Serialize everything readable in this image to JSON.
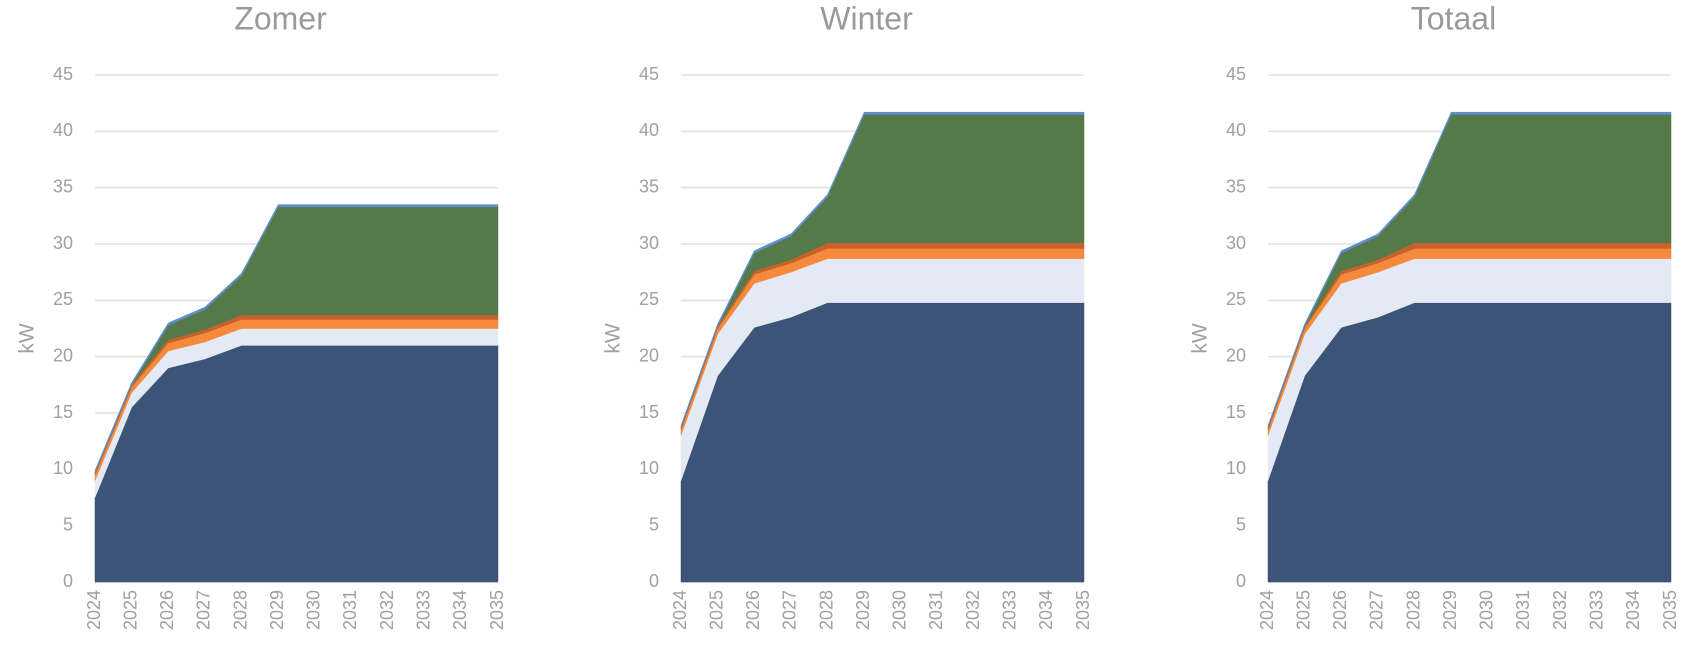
{
  "chart_data": [
    {
      "type": "area",
      "title": "Zomer",
      "ylabel": "kW",
      "categories": [
        "2024",
        "2025",
        "2026",
        "2027",
        "2028",
        "2029",
        "2030",
        "2031",
        "2032",
        "2033",
        "2034",
        "2035"
      ],
      "ylim": [
        0,
        45
      ],
      "yticks": [
        0,
        5,
        10,
        15,
        20,
        25,
        30,
        35,
        40,
        45
      ],
      "grid": true,
      "stacked": true,
      "series": [
        {
          "color": "#3b5478",
          "values": [
            7.5,
            15.5,
            19,
            19.8,
            21,
            21,
            21,
            21,
            21,
            21,
            21,
            21
          ]
        },
        {
          "color": "#e4eaf3",
          "values": [
            1.5,
            1.3,
            1.5,
            1.5,
            1.5,
            1.5,
            1.5,
            1.5,
            1.5,
            1.5,
            1.5,
            1.5
          ]
        },
        {
          "color": "#f58a3d",
          "values": [
            0.5,
            0.5,
            0.7,
            0.8,
            0.8,
            0.8,
            0.8,
            0.8,
            0.8,
            0.8,
            0.8,
            0.8
          ]
        },
        {
          "color": "#c9622a",
          "values": [
            0.2,
            0.2,
            0.3,
            0.3,
            0.4,
            0.4,
            0.4,
            0.4,
            0.4,
            0.4,
            0.4,
            0.4
          ]
        },
        {
          "color": "#56794a",
          "values": [
            0,
            0,
            1.3,
            1.8,
            3.5,
            9.6,
            9.6,
            9.6,
            9.6,
            9.6,
            9.6,
            9.6
          ]
        },
        {
          "color": "#5b8fd0",
          "values": [
            0.2,
            0.2,
            0.2,
            0.2,
            0.2,
            0.2,
            0.2,
            0.2,
            0.2,
            0.2,
            0.2,
            0.2
          ]
        }
      ]
    },
    {
      "type": "area",
      "title": "Winter",
      "ylabel": "kW",
      "categories": [
        "2024",
        "2025",
        "2026",
        "2027",
        "2028",
        "2029",
        "2030",
        "2031",
        "2032",
        "2033",
        "2034",
        "2035"
      ],
      "ylim": [
        0,
        45
      ],
      "yticks": [
        0,
        5,
        10,
        15,
        20,
        25,
        30,
        35,
        40,
        45
      ],
      "grid": true,
      "stacked": true,
      "series": [
        {
          "color": "#3b5478",
          "values": [
            9,
            18.3,
            22.6,
            23.5,
            24.8,
            24.8,
            24.8,
            24.8,
            24.8,
            24.8,
            24.8,
            24.8
          ]
        },
        {
          "color": "#e4eaf3",
          "values": [
            4,
            3.7,
            3.9,
            4,
            3.9,
            3.9,
            3.9,
            3.9,
            3.9,
            3.9,
            3.9,
            3.9
          ]
        },
        {
          "color": "#f58a3d",
          "values": [
            0.5,
            0.5,
            0.8,
            0.8,
            0.9,
            0.9,
            0.9,
            0.9,
            0.9,
            0.9,
            0.9,
            0.9
          ]
        },
        {
          "color": "#c9622a",
          "values": [
            0.2,
            0.2,
            0.3,
            0.3,
            0.5,
            0.5,
            0.5,
            0.5,
            0.5,
            0.5,
            0.5,
            0.5
          ]
        },
        {
          "color": "#56794a",
          "values": [
            0,
            0,
            1.6,
            2.1,
            4.1,
            11.4,
            11.4,
            11.4,
            11.4,
            11.4,
            11.4,
            11.4
          ]
        },
        {
          "color": "#5b8fd0",
          "values": [
            0.2,
            0.2,
            0.2,
            0.2,
            0.2,
            0.2,
            0.2,
            0.2,
            0.2,
            0.2,
            0.2,
            0.2
          ]
        }
      ]
    },
    {
      "type": "area",
      "title": "Totaal",
      "ylabel": "kW",
      "categories": [
        "2024",
        "2025",
        "2026",
        "2027",
        "2028",
        "2029",
        "2030",
        "2031",
        "2032",
        "2033",
        "2034",
        "2035"
      ],
      "ylim": [
        0,
        45
      ],
      "yticks": [
        0,
        5,
        10,
        15,
        20,
        25,
        30,
        35,
        40,
        45
      ],
      "grid": true,
      "stacked": true,
      "series": [
        {
          "color": "#3b5478",
          "values": [
            9,
            18.3,
            22.6,
            23.5,
            24.8,
            24.8,
            24.8,
            24.8,
            24.8,
            24.8,
            24.8,
            24.8
          ]
        },
        {
          "color": "#e4eaf3",
          "values": [
            4,
            3.7,
            3.9,
            4,
            3.9,
            3.9,
            3.9,
            3.9,
            3.9,
            3.9,
            3.9,
            3.9
          ]
        },
        {
          "color": "#f58a3d",
          "values": [
            0.5,
            0.5,
            0.8,
            0.8,
            0.9,
            0.9,
            0.9,
            0.9,
            0.9,
            0.9,
            0.9,
            0.9
          ]
        },
        {
          "color": "#c9622a",
          "values": [
            0.2,
            0.2,
            0.3,
            0.3,
            0.5,
            0.5,
            0.5,
            0.5,
            0.5,
            0.5,
            0.5,
            0.5
          ]
        },
        {
          "color": "#56794a",
          "values": [
            0,
            0,
            1.6,
            2.1,
            4.1,
            11.4,
            11.4,
            11.4,
            11.4,
            11.4,
            11.4,
            11.4
          ]
        },
        {
          "color": "#5b8fd0",
          "values": [
            0.2,
            0.2,
            0.2,
            0.2,
            0.2,
            0.2,
            0.2,
            0.2,
            0.2,
            0.2,
            0.2,
            0.2
          ]
        }
      ]
    }
  ]
}
